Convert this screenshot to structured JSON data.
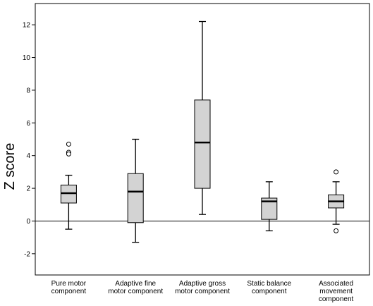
{
  "chart_data": {
    "type": "boxplot",
    "title": "",
    "ylabel": "Z score",
    "xlabel": "",
    "ylim": [
      -3.3,
      13.3
    ],
    "yticks": [
      -2,
      0,
      2,
      4,
      6,
      8,
      10,
      12
    ],
    "reference_line": 0,
    "grid": false,
    "colors": {
      "box_fill": "#d3d3d3",
      "stroke": "#000000",
      "background": "#ffffff"
    },
    "categories": [
      {
        "lines": [
          "Pure motor",
          "component"
        ]
      },
      {
        "lines": [
          "Adaptive fine",
          "motor component"
        ]
      },
      {
        "lines": [
          "Adaptive gross",
          "motor component"
        ]
      },
      {
        "lines": [
          "Static balance",
          "component"
        ]
      },
      {
        "lines": [
          "Associated",
          "movement",
          "component"
        ]
      }
    ],
    "boxes": [
      {
        "min": -0.5,
        "q1": 1.1,
        "median": 1.7,
        "q3": 2.2,
        "max": 2.8,
        "outliers": [
          4.7,
          4.2,
          4.1
        ]
      },
      {
        "min": -1.3,
        "q1": -0.1,
        "median": 1.8,
        "q3": 2.9,
        "max": 5.0,
        "outliers": []
      },
      {
        "min": 0.4,
        "q1": 2.0,
        "median": 4.8,
        "q3": 7.4,
        "max": 12.2,
        "outliers": []
      },
      {
        "min": -0.6,
        "q1": 0.1,
        "median": 1.2,
        "q3": 1.4,
        "max": 2.4,
        "outliers": []
      },
      {
        "min": -0.2,
        "q1": 0.8,
        "median": 1.2,
        "q3": 1.6,
        "max": 2.4,
        "outliers": [
          3.0,
          -0.6
        ]
      }
    ]
  }
}
